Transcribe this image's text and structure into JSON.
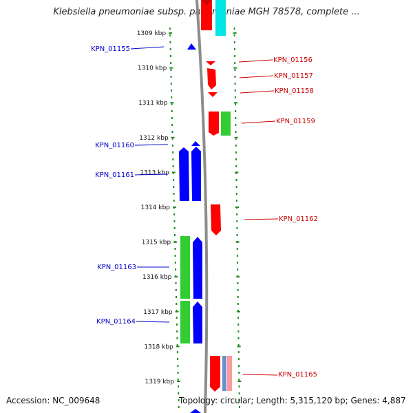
{
  "title": "Klebsiella pneumoniae subsp. pneumoniae MGH 78578, complete ...",
  "footer": {
    "accession": "Accession: NC_009648",
    "topology": "Topology: circular; Length: 5,315,120 bp; Genes: 4,887"
  },
  "scale": {
    "ticks": [
      "1309 kbp",
      "1310 kbp",
      "1311 kbp",
      "1312 kbp",
      "1313 kbp",
      "1314 kbp",
      "1315 kbp",
      "1316 kbp",
      "1317 kbp",
      "1318 kbp",
      "1319 kbp"
    ]
  },
  "colors": {
    "red": "#ff0000",
    "blue": "#0000ff",
    "green": "#33cc33",
    "cyan": "#00e6e6",
    "pink": "#ff9999",
    "steel": "#6a8fcf",
    "backbone": "#8c8c8c",
    "dots": "#228b22",
    "left_label": "#0000cc",
    "right_label": "#cc0000"
  },
  "genes_left": [
    {
      "label": "KPN_01155"
    },
    {
      "label": "KPN_01160"
    },
    {
      "label": "KPN_01161"
    },
    {
      "label": "KPN_01163"
    },
    {
      "label": "KPN_01164"
    }
  ],
  "genes_right": [
    {
      "label": "KPN_01156"
    },
    {
      "label": "KPN_01157"
    },
    {
      "label": "KPN_01158"
    },
    {
      "label": "KPN_01159"
    },
    {
      "label": "KPN_01162"
    },
    {
      "label": "KPN_01165"
    }
  ]
}
